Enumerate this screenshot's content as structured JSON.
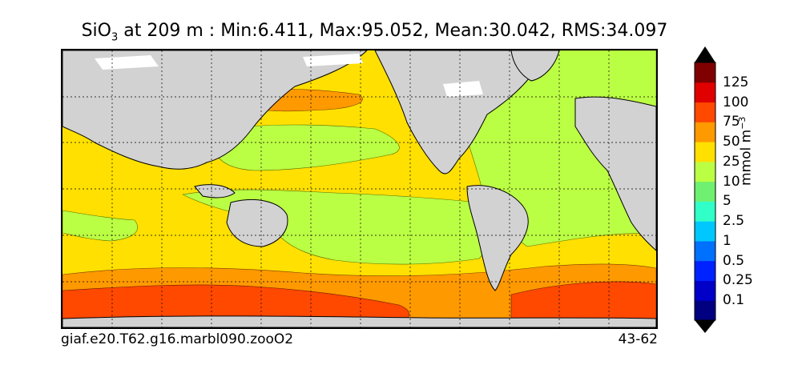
{
  "title": {
    "var_base": "SiO",
    "var_sub": "3",
    "rest": " at 209 m : Min:6.411, Max:95.052, Mean:30.042, RMS:34.097"
  },
  "footer": {
    "case_name": "giaf.e20.T62.g16.marbl090.zooO2",
    "years": "43-62"
  },
  "colorbar": {
    "label_base": "mmol m",
    "label_exp": "−3",
    "levels": [
      "0.1",
      "0.25",
      "0.5",
      "1",
      "2.5",
      "5",
      "10",
      "25",
      "50",
      "75",
      "100",
      "125"
    ],
    "colors": [
      "#000080",
      "#0000c8",
      "#0022ff",
      "#0070ff",
      "#00c8ff",
      "#30ffc8",
      "#70f070",
      "#bbff44",
      "#ffe000",
      "#ff9900",
      "#ff4800",
      "#e00000",
      "#800000"
    ],
    "under_color": "#000000",
    "over_color": "#000000"
  },
  "map": {
    "land_color": "#d2d2d2",
    "missing_color": "#ffffff",
    "grid": "dotted"
  }
}
